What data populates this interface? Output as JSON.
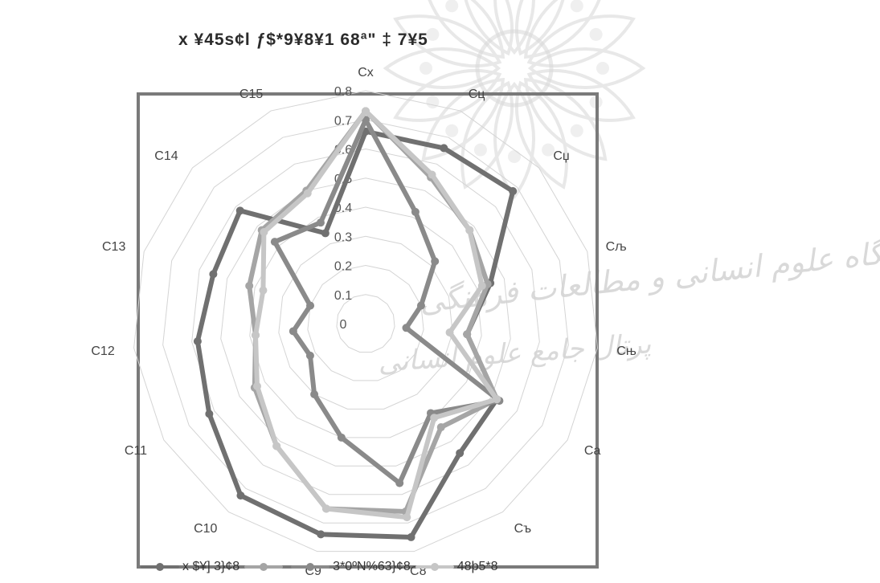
{
  "watermark": {
    "line1": "پژوهشگاه علوم انسانی و مطالعات فرهنگی",
    "line2": "پرتال جامع علوم انسانی"
  },
  "chart_data": {
    "type": "radar",
    "title": "x ¥45s¢l  ƒ$*9¥8¥1  68ª\" ‡ 7¥5",
    "categories": [
      "Cx",
      "Cц",
      "Cџ",
      "Cљ",
      "Cњ",
      "Ca",
      "Cъ",
      "C8",
      "C9",
      "C10",
      "C11",
      "C12",
      "C13",
      "C14",
      "C15"
    ],
    "tick_labels": [
      "0",
      "0.1",
      "0.2",
      "0.3",
      "0.4",
      "0.5",
      "0.6",
      "0.7",
      "0.8"
    ],
    "rlim": [
      0,
      0.8
    ],
    "legend_position": "bottom",
    "series": [
      {
        "name": "x $¥] 3}¢8",
        "color": "#707070",
        "values": [
          0.66,
          0.66,
          0.68,
          0.45,
          0.35,
          0.52,
          0.55,
          0.75,
          0.74,
          0.73,
          0.62,
          0.58,
          0.55,
          0.58,
          0.34
        ]
      },
      {
        "name": "",
        "color": "#a5a5a5",
        "values": [
          0.73,
          0.55,
          0.48,
          0.44,
          0.35,
          0.52,
          0.44,
          0.66,
          0.65,
          0.52,
          0.44,
          0.38,
          0.42,
          0.48,
          0.5
        ]
      },
      {
        "name": "3*0ºN%63}¢8",
        "color": "#8a8a8a",
        "values": [
          0.7,
          0.42,
          0.32,
          0.2,
          0.14,
          0.53,
          0.38,
          0.56,
          0.4,
          0.3,
          0.22,
          0.25,
          0.2,
          0.42,
          0.38
        ]
      },
      {
        "name": "48þ5*8",
        "color": "#c6c6c6",
        "values": [
          0.73,
          0.56,
          0.48,
          0.42,
          0.29,
          0.52,
          0.4,
          0.68,
          0.65,
          0.52,
          0.43,
          0.38,
          0.37,
          0.47,
          0.49
        ]
      }
    ]
  }
}
